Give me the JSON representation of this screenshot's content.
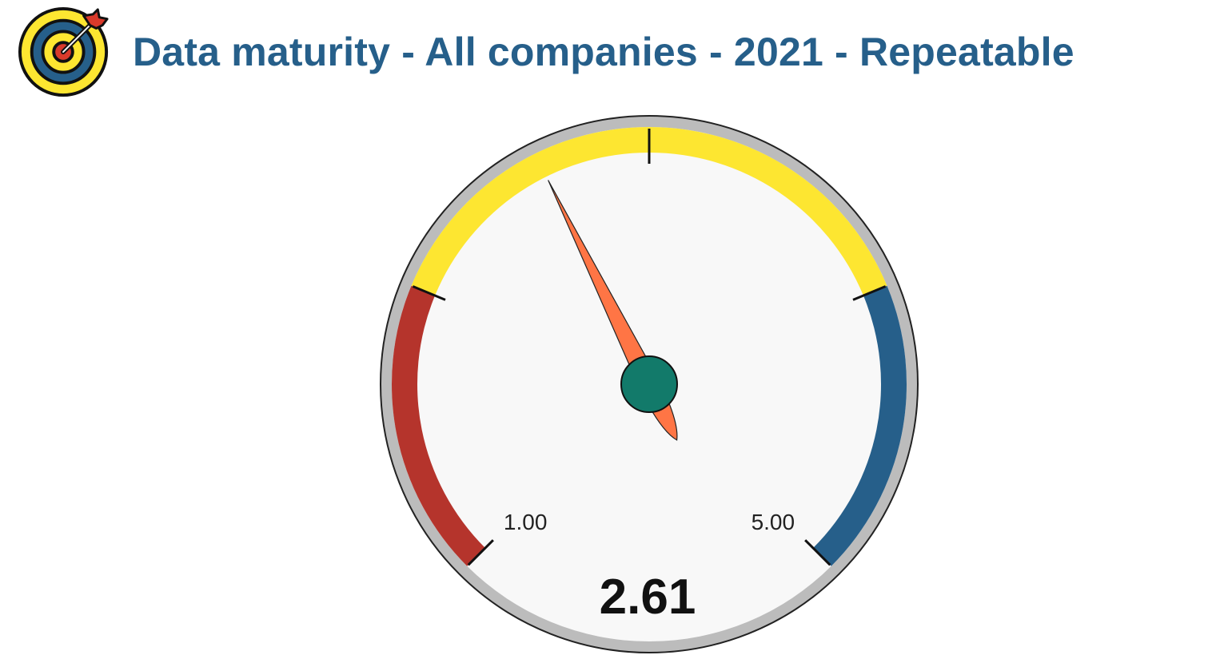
{
  "header": {
    "title": "Data maturity - All companies - 2021 - Repeatable",
    "icon": "target-dart-icon"
  },
  "chart_data": {
    "type": "gauge",
    "title": "Data maturity - All companies - 2021 - Repeatable",
    "value": 2.61,
    "value_label": "2.61",
    "min": 1.0,
    "max": 5.0,
    "min_label": "1.00",
    "max_label": "5.00",
    "bands": [
      {
        "from": 1.0,
        "to": 2.0,
        "color": "#b5342c"
      },
      {
        "from": 2.0,
        "to": 4.0,
        "color": "#fde631"
      },
      {
        "from": 4.0,
        "to": 5.0,
        "color": "#265f8a"
      }
    ],
    "tick_values": [
      1.0,
      2.0,
      3.0,
      4.0,
      5.0
    ]
  },
  "colors": {
    "title": "#265f8a",
    "needle": "#ff7545",
    "hub": "#127a6a",
    "dial_face": "#f8f8f8",
    "rim": "#bcbcbc"
  }
}
